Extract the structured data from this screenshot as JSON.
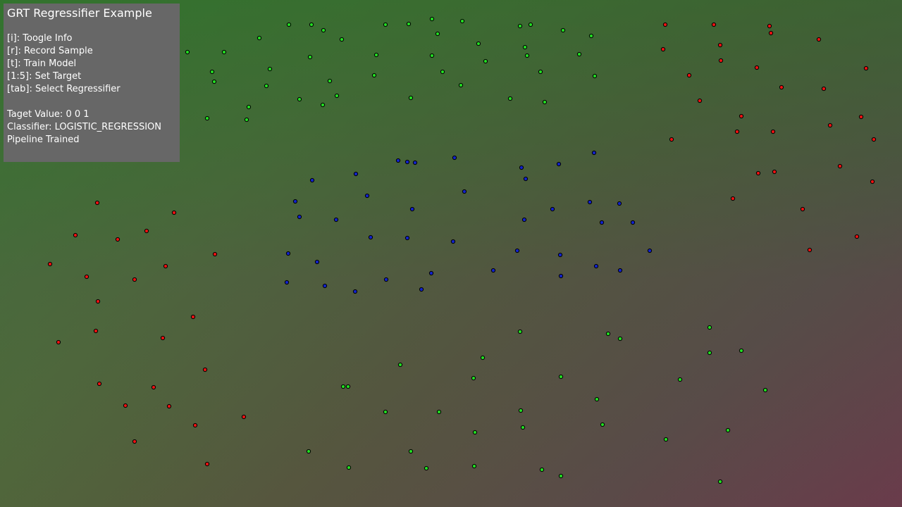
{
  "app": {
    "title": "GRT Regressifier Example"
  },
  "info_panel": {
    "title": "GRT Regressifier Example",
    "controls": [
      "[i]: Toogle Info",
      "[r]: Record Sample",
      "[t]: Train Model",
      "[1:5]: Set Target",
      "[tab]: Select Regressifier"
    ],
    "status": [
      "Taget Value: 0 0 1",
      "Classifier: LOGISTIC_REGRESSION",
      "Pipeline Trained"
    ]
  },
  "colors": {
    "green_point": "#22dd22",
    "red_point": "#ee1111",
    "blue_point": "#1122cc",
    "point_outline": "#000000",
    "panel_background": "#676767"
  },
  "samples": {
    "green": [
      [
        613,
        27
      ],
      [
        656,
        30
      ],
      [
        410,
        35
      ],
      [
        442,
        35
      ],
      [
        547,
        35
      ],
      [
        580,
        34
      ],
      [
        738,
        37
      ],
      [
        753,
        35
      ],
      [
        459,
        43
      ],
      [
        799,
        43
      ],
      [
        621,
        48
      ],
      [
        368,
        54
      ],
      [
        839,
        51
      ],
      [
        485,
        56
      ],
      [
        679,
        62
      ],
      [
        745,
        67
      ],
      [
        266,
        74
      ],
      [
        318,
        74
      ],
      [
        534,
        78
      ],
      [
        613,
        79
      ],
      [
        440,
        81
      ],
      [
        748,
        79
      ],
      [
        822,
        77
      ],
      [
        689,
        87
      ],
      [
        383,
        98
      ],
      [
        301,
        102
      ],
      [
        628,
        102
      ],
      [
        767,
        102
      ],
      [
        531,
        107
      ],
      [
        844,
        108
      ],
      [
        304,
        116
      ],
      [
        468,
        115
      ],
      [
        378,
        122
      ],
      [
        654,
        121
      ],
      [
        478,
        136
      ],
      [
        583,
        139
      ],
      [
        425,
        141
      ],
      [
        724,
        140
      ],
      [
        773,
        145
      ],
      [
        458,
        149
      ],
      [
        353,
        152
      ],
      [
        294,
        168
      ],
      [
        350,
        170
      ],
      [
        738,
        471
      ],
      [
        1007,
        465
      ],
      [
        863,
        474
      ],
      [
        880,
        481
      ],
      [
        1052,
        498
      ],
      [
        1007,
        501
      ],
      [
        685,
        508
      ],
      [
        568,
        518
      ],
      [
        672,
        537
      ],
      [
        796,
        535
      ],
      [
        965,
        539
      ],
      [
        487,
        549
      ],
      [
        494,
        549
      ],
      [
        1086,
        554
      ],
      [
        847,
        567
      ],
      [
        547,
        585
      ],
      [
        623,
        585
      ],
      [
        739,
        583
      ],
      [
        855,
        603
      ],
      [
        742,
        607
      ],
      [
        1033,
        611
      ],
      [
        674,
        614
      ],
      [
        945,
        624
      ],
      [
        438,
        641
      ],
      [
        583,
        641
      ],
      [
        495,
        664
      ],
      [
        605,
        665
      ],
      [
        673,
        662
      ],
      [
        769,
        667
      ],
      [
        796,
        676
      ],
      [
        1022,
        684
      ]
    ],
    "red": [
      [
        944,
        35
      ],
      [
        1013,
        35
      ],
      [
        1092,
        37
      ],
      [
        1094,
        47
      ],
      [
        1162,
        56
      ],
      [
        1022,
        64
      ],
      [
        941,
        70
      ],
      [
        1023,
        86
      ],
      [
        1074,
        96
      ],
      [
        1229,
        97
      ],
      [
        978,
        107
      ],
      [
        1109,
        124
      ],
      [
        1169,
        126
      ],
      [
        993,
        143
      ],
      [
        1052,
        165
      ],
      [
        1222,
        166
      ],
      [
        1178,
        178
      ],
      [
        1046,
        187
      ],
      [
        1097,
        187
      ],
      [
        953,
        198
      ],
      [
        1240,
        198
      ],
      [
        1192,
        236
      ],
      [
        1076,
        246
      ],
      [
        1099,
        244
      ],
      [
        1238,
        258
      ],
      [
        1040,
        282
      ],
      [
        1139,
        297
      ],
      [
        1216,
        336
      ],
      [
        1149,
        355
      ],
      [
        138,
        288
      ],
      [
        247,
        302
      ],
      [
        107,
        334
      ],
      [
        208,
        328
      ],
      [
        167,
        340
      ],
      [
        305,
        361
      ],
      [
        71,
        375
      ],
      [
        235,
        378
      ],
      [
        123,
        393
      ],
      [
        191,
        397
      ],
      [
        139,
        428
      ],
      [
        274,
        450
      ],
      [
        136,
        470
      ],
      [
        231,
        480
      ],
      [
        83,
        486
      ],
      [
        291,
        525
      ],
      [
        141,
        545
      ],
      [
        218,
        550
      ],
      [
        178,
        576
      ],
      [
        240,
        577
      ],
      [
        346,
        592
      ],
      [
        277,
        604
      ],
      [
        191,
        627
      ],
      [
        294,
        659
      ]
    ],
    "blue": [
      [
        645,
        224
      ],
      [
        843,
        217
      ],
      [
        565,
        228
      ],
      [
        578,
        230
      ],
      [
        589,
        231
      ],
      [
        740,
        238
      ],
      [
        793,
        233
      ],
      [
        505,
        247
      ],
      [
        443,
        256
      ],
      [
        746,
        254
      ],
      [
        659,
        272
      ],
      [
        521,
        278
      ],
      [
        419,
        286
      ],
      [
        837,
        287
      ],
      [
        879,
        289
      ],
      [
        585,
        297
      ],
      [
        784,
        297
      ],
      [
        425,
        308
      ],
      [
        477,
        312
      ],
      [
        744,
        312
      ],
      [
        854,
        316
      ],
      [
        898,
        316
      ],
      [
        526,
        337
      ],
      [
        578,
        338
      ],
      [
        643,
        343
      ],
      [
        734,
        356
      ],
      [
        922,
        356
      ],
      [
        409,
        360
      ],
      [
        795,
        362
      ],
      [
        450,
        372
      ],
      [
        846,
        378
      ],
      [
        700,
        384
      ],
      [
        880,
        384
      ],
      [
        612,
        388
      ],
      [
        796,
        392
      ],
      [
        548,
        397
      ],
      [
        407,
        401
      ],
      [
        461,
        406
      ],
      [
        598,
        411
      ],
      [
        504,
        414
      ]
    ]
  }
}
